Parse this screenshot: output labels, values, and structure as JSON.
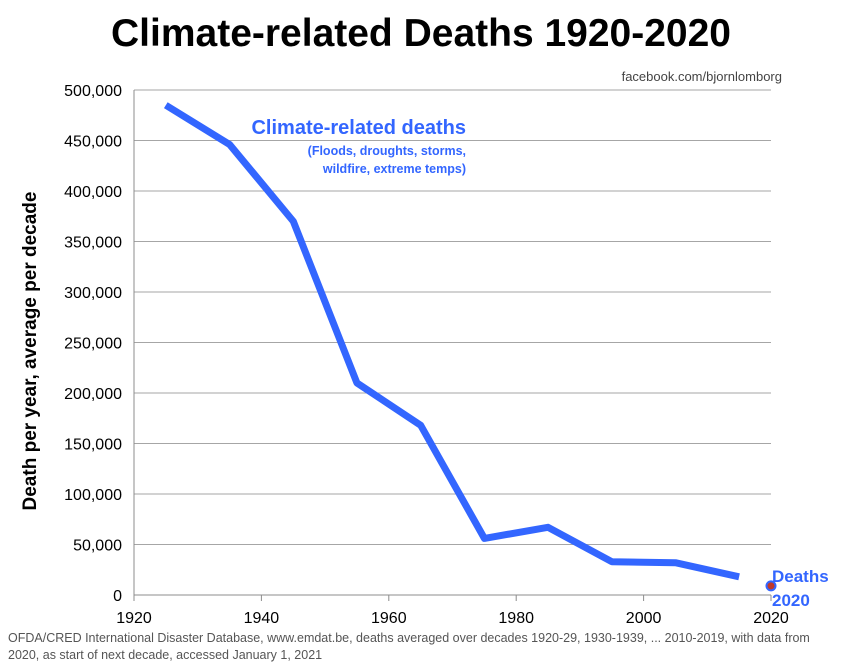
{
  "title": "Climate-related Deaths 1920-2020",
  "credit": "facebook.com/bjornlomborg",
  "source_note": "OFDA/CRED International Disaster Database, www.emdat.be, deaths averaged over decades 1920-29, 1930-1939, ... 2010-2019, with data from 2020, as start of next decade, accessed January 1, 2021",
  "chart_data": {
    "type": "line",
    "title": "Climate-related Deaths 1920-2020",
    "xlabel": "",
    "ylabel": "Death per year, average per decade",
    "xlim": [
      1920,
      2020
    ],
    "ylim": [
      0,
      500000
    ],
    "x_ticks": [
      1920,
      1940,
      1960,
      1980,
      2000,
      2020
    ],
    "x_tick_labels": [
      "1920",
      "1940",
      "1960",
      "1980",
      "2000",
      "2020"
    ],
    "y_ticks": [
      0,
      50000,
      100000,
      150000,
      200000,
      250000,
      300000,
      350000,
      400000,
      450000,
      500000
    ],
    "y_tick_labels": [
      "0",
      "50,000",
      "100,000",
      "150,000",
      "200,000",
      "250,000",
      "300,000",
      "350,000",
      "400,000",
      "450,000",
      "500,000"
    ],
    "grid": "horizontal",
    "series": [
      {
        "name": "Climate-related deaths",
        "subtitle_lines": [
          "(Floods, droughts, storms,",
          "wildfire, extreme temps)"
        ],
        "color": "#3366ff",
        "x": [
          1925,
          1935,
          1945,
          1955,
          1965,
          1975,
          1985,
          1995,
          2005,
          2015
        ],
        "y": [
          485000,
          446000,
          370000,
          210000,
          168000,
          56000,
          67000,
          33000,
          32000,
          18000
        ]
      },
      {
        "name": "Deaths 2020",
        "label_lines": [
          "Deaths",
          "2020"
        ],
        "color": "#3366ff",
        "marker_color": "#c0392b",
        "x": [
          2020
        ],
        "y": [
          9000
        ]
      }
    ]
  }
}
